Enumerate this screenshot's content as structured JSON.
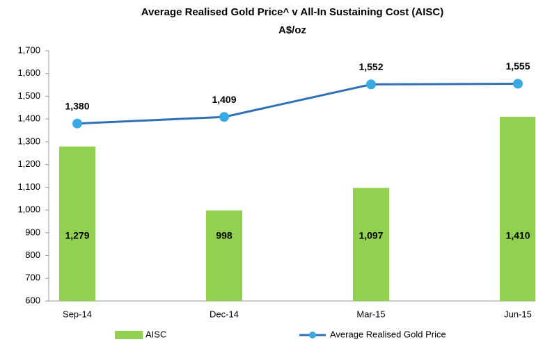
{
  "chart_data": {
    "type": "bar",
    "title": "Average Realised Gold Price^ v All-In Sustaining Cost (AISC)",
    "subtitle": "A$/oz",
    "categories": [
      "Sep-14",
      "Dec-14",
      "Mar-15",
      "Jun-15"
    ],
    "series": [
      {
        "name": "AISC",
        "type": "bar",
        "color": "#92d050",
        "values": [
          1279,
          998,
          1097,
          1410
        ],
        "value_labels": [
          "1,279",
          "998",
          "1,097",
          "1,410"
        ]
      },
      {
        "name": "Average Realised Gold Price",
        "type": "line",
        "color": "#2e6fb7",
        "marker_color": "#3aa8e3",
        "values": [
          1380,
          1409,
          1552,
          1555
        ],
        "value_labels": [
          "1,380",
          "1,409",
          "1,552",
          "1,555"
        ]
      }
    ],
    "ylim": [
      600,
      1700
    ],
    "yticks": [
      600,
      700,
      800,
      900,
      {
        "value": 1000,
        "label": "1,000"
      },
      {
        "value": 1100,
        "label": "1,100"
      },
      {
        "value": 1200,
        "label": "1,200"
      },
      {
        "value": 1300,
        "label": "1,300"
      },
      {
        "value": 1400,
        "label": "1,400"
      },
      {
        "value": 1500,
        "label": "1,500"
      },
      {
        "value": 1600,
        "label": "1,600"
      },
      {
        "value": 1700,
        "label": "1,700"
      }
    ],
    "legend": "bottom"
  }
}
